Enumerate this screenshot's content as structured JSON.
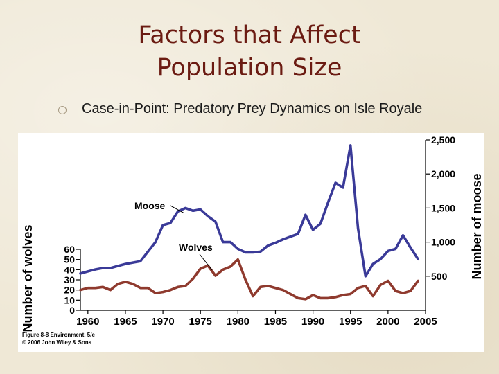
{
  "slide": {
    "title_line1": "Factors that Affect",
    "title_line2": "Population Size",
    "bullet_text": "Case-in-Point: Predatory Prey Dynamics on Isle Royale",
    "title_color": "#6b1b12"
  },
  "chart_data": {
    "type": "line",
    "title": "",
    "x_ticks": [
      1960,
      1965,
      1970,
      1975,
      1980,
      1985,
      1990,
      1995,
      2000,
      2005
    ],
    "xlim": [
      1959,
      2005
    ],
    "left_axis": {
      "label": "Number of wolves",
      "ticks": [
        "0",
        "10",
        "20",
        "30",
        "40",
        "50",
        "60"
      ],
      "ylim": [
        0,
        60
      ]
    },
    "right_axis": {
      "label": "Number of moose",
      "ticks": [
        "500",
        "1,000",
        "1,500",
        "2,000",
        "2,500"
      ],
      "ylim": [
        500,
        2500
      ]
    },
    "series": [
      {
        "name": "Moose",
        "axis": "right",
        "color": "#3a3a98",
        "x": [
          1959,
          1960,
          1961,
          1962,
          1963,
          1964,
          1965,
          1966,
          1967,
          1968,
          1969,
          1970,
          1971,
          1972,
          1973,
          1974,
          1975,
          1976,
          1977,
          1978,
          1979,
          1980,
          1981,
          1982,
          1983,
          1984,
          1985,
          1986,
          1987,
          1988,
          1989,
          1990,
          1991,
          1992,
          1993,
          1994,
          1995,
          1996,
          1997,
          1998,
          1999,
          2000,
          2001,
          2002,
          2003,
          2004
        ],
        "values": [
          540,
          570,
          600,
          620,
          620,
          650,
          680,
          700,
          720,
          860,
          1000,
          1250,
          1280,
          1450,
          1500,
          1460,
          1480,
          1380,
          1300,
          1000,
          1000,
          900,
          850,
          850,
          860,
          950,
          990,
          1040,
          1080,
          1120,
          1400,
          1180,
          1270,
          1580,
          1870,
          1800,
          2420,
          1200,
          500,
          680,
          750,
          870,
          900,
          1100,
          920,
          750
        ]
      },
      {
        "name": "Wolves",
        "axis": "left",
        "color": "#8f3a2e",
        "x": [
          1959,
          1960,
          1961,
          1962,
          1963,
          1964,
          1965,
          1966,
          1967,
          1968,
          1969,
          1970,
          1971,
          1972,
          1973,
          1974,
          1975,
          1976,
          1977,
          1978,
          1979,
          1980,
          1981,
          1982,
          1983,
          1984,
          1985,
          1986,
          1987,
          1988,
          1989,
          1990,
          1991,
          1992,
          1993,
          1994,
          1995,
          1996,
          1997,
          1998,
          1999,
          2000,
          2001,
          2002,
          2003,
          2004
        ],
        "values": [
          20,
          22,
          22,
          23,
          20,
          26,
          28,
          26,
          22,
          22,
          17,
          18,
          20,
          23,
          24,
          31,
          41,
          44,
          34,
          40,
          43,
          50,
          30,
          14,
          23,
          24,
          22,
          20,
          16,
          12,
          11,
          15,
          12,
          12,
          13,
          15,
          16,
          22,
          24,
          14,
          25,
          29,
          19,
          17,
          19,
          29
        ]
      }
    ],
    "annotations": [
      "Moose",
      "Wolves"
    ]
  },
  "figure_caption": {
    "line1": "Figure 8-8 Environment, 5/e",
    "line2": "© 2006 John Wiley & Sons"
  }
}
